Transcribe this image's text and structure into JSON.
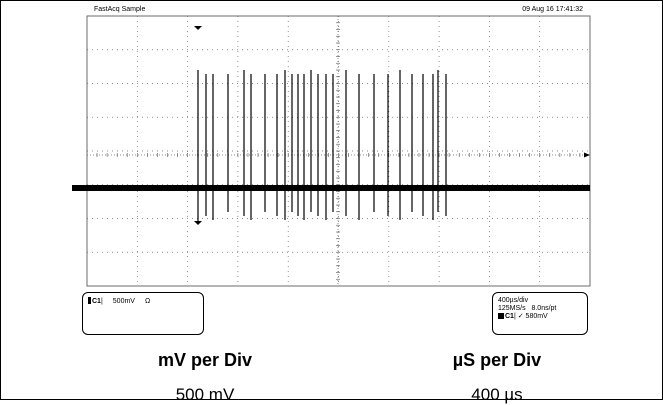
{
  "scope": {
    "mode": "FastAcq Sample",
    "datetime": "09 Aug 16 17:41:32",
    "channel_box": {
      "channel": "C1",
      "scale": "500mV",
      "coupling": "Ω"
    },
    "timebase_box": {
      "time_per_div": "400µs/div",
      "sample_rate": "125MS/s",
      "resolution": "8.0ns/pt",
      "trigger_channel": "C1",
      "trigger_symbol": "✓",
      "trigger_level": "580mV"
    },
    "trace_color": "#000000",
    "grid_color": "#6b6b6b"
  },
  "captions": {
    "left": {
      "title": "mV per Div",
      "value": "500 mV"
    },
    "right": {
      "title": "µS per Div",
      "value": "400 µs"
    }
  }
}
